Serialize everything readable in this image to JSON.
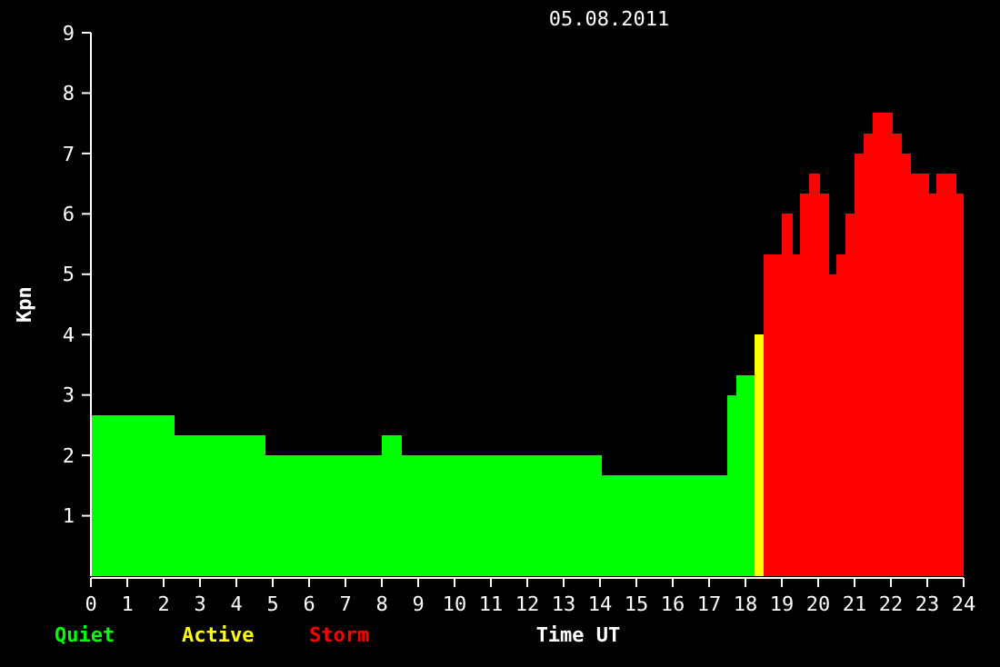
{
  "chart_data": {
    "type": "histogram",
    "title": "05.08.2011",
    "xlabel": "Time UT",
    "ylabel": "Kpn",
    "bins": [
      0,
      2.3,
      4.8,
      8,
      8.55,
      14.05,
      17.5,
      17.75,
      18.25,
      18.5,
      19,
      19.3,
      19.5,
      19.75,
      20.05,
      20.3,
      20.5,
      20.75,
      21,
      21.25,
      21.5,
      22.05,
      22.3,
      22.55,
      23.05,
      23.25,
      23.8,
      24
    ],
    "series": [
      {
        "name": "Quiet",
        "color": "#00ff00",
        "values": [
          2.67,
          2.33,
          2,
          2.33,
          2,
          1.67,
          3,
          3.33,
          null,
          null,
          null,
          null,
          null,
          null,
          null,
          null,
          null,
          null,
          null,
          null,
          null,
          null,
          null,
          null,
          null,
          null,
          null
        ]
      },
      {
        "name": "Active",
        "color": "#ffff00",
        "values": [
          null,
          null,
          null,
          null,
          null,
          null,
          null,
          null,
          4,
          null,
          null,
          null,
          null,
          null,
          null,
          null,
          null,
          null,
          null,
          null,
          null,
          null,
          null,
          null,
          null,
          null,
          null
        ]
      },
      {
        "name": "Storm",
        "color": "#ff0000",
        "values": [
          null,
          null,
          null,
          null,
          null,
          null,
          null,
          null,
          null,
          5.33,
          6,
          5.33,
          6.33,
          6.67,
          6.33,
          5,
          5.33,
          6,
          7,
          7.33,
          7.67,
          7.33,
          7,
          6.67,
          6.33,
          6.67,
          6.33
        ]
      }
    ],
    "xlim": [
      0,
      24
    ],
    "xticks": [
      0,
      1,
      2,
      3,
      4,
      5,
      6,
      7,
      8,
      9,
      10,
      11,
      12,
      13,
      14,
      15,
      16,
      17,
      18,
      19,
      20,
      21,
      22,
      23,
      24
    ],
    "ylim": [
      0,
      9
    ],
    "yticks": [
      1,
      2,
      3,
      4,
      5,
      6,
      7,
      8,
      9
    ],
    "legend": "bottom left"
  }
}
